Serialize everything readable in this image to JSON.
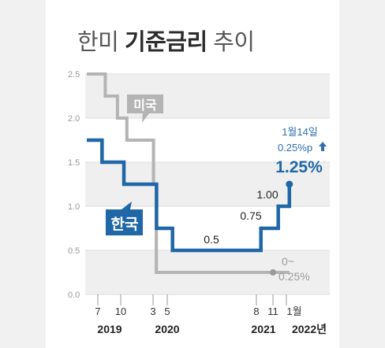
{
  "title": {
    "prefix": "한미",
    "highlight": "기준금리",
    "suffix": "추이"
  },
  "chart_data": {
    "type": "line",
    "step": true,
    "title": "한미 기준금리 추이",
    "xlabel": "",
    "ylabel": "",
    "ylim": [
      0,
      2.5
    ],
    "y_ticks": [
      "2.5",
      "2.0",
      "1.5",
      "1.0",
      "0.5",
      "0.0"
    ],
    "grid": "horizontal bands",
    "x_tick_months": [
      "7",
      "10",
      "3",
      "5",
      "8",
      "11",
      "1월"
    ],
    "x_tick_years": [
      "2019",
      "2020",
      "2021",
      "2022년"
    ],
    "series": [
      {
        "name": "미국",
        "color": "#b4b4b4",
        "points": [
          {
            "date": "2019-01-01",
            "value": 2.5
          },
          {
            "date": "2019-07-31",
            "value": 2.25
          },
          {
            "date": "2019-09-18",
            "value": 2.0
          },
          {
            "date": "2019-10-30",
            "value": 1.75
          },
          {
            "date": "2020-03-03",
            "value": 1.25
          },
          {
            "date": "2020-03-15",
            "value": 0.25
          },
          {
            "date": "2022-01-14",
            "value": 0.25
          }
        ],
        "end_label": [
          "0~",
          "0.25%"
        ]
      },
      {
        "name": "한국",
        "color": "#1f67a6",
        "points": [
          {
            "date": "2019-01-01",
            "value": 1.75
          },
          {
            "date": "2019-07-18",
            "value": 1.5
          },
          {
            "date": "2019-10-16",
            "value": 1.25
          },
          {
            "date": "2020-03-16",
            "value": 0.75
          },
          {
            "date": "2020-05-28",
            "value": 0.5
          },
          {
            "date": "2021-08-26",
            "value": 0.75
          },
          {
            "date": "2021-11-25",
            "value": 1.0
          },
          {
            "date": "2022-01-14",
            "value": 1.25
          }
        ],
        "step_labels": [
          {
            "text": "0.5",
            "value": 0.5
          },
          {
            "text": "0.75",
            "value": 0.75
          },
          {
            "text": "1.00",
            "value": 1.0
          }
        ]
      }
    ],
    "annotation": {
      "date": "1월14일",
      "change": "0.25%p",
      "current": "1.25%"
    },
    "colors": {
      "korea": "#1f67a6",
      "us": "#b4b4b4",
      "band": "#efefef"
    },
    "icons": {
      "up_arrow": "arrow-up-icon"
    }
  }
}
